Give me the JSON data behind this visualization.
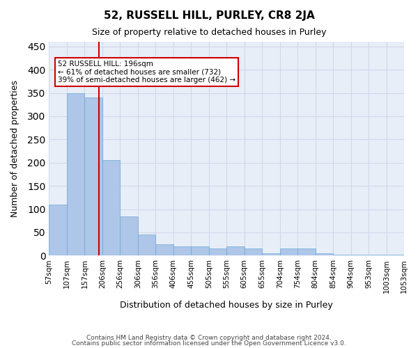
{
  "title": "52, RUSSELL HILL, PURLEY, CR8 2JA",
  "subtitle": "Size of property relative to detached houses in Purley",
  "xlabel": "Distribution of detached houses by size in Purley",
  "ylabel": "Number of detached properties",
  "footer_line1": "Contains HM Land Registry data © Crown copyright and database right 2024.",
  "footer_line2": "Contains public sector information licensed under the Open Government Licence v3.0.",
  "bar_labels": [
    "57sqm",
    "107sqm",
    "157sqm",
    "206sqm",
    "256sqm",
    "306sqm",
    "356sqm",
    "406sqm",
    "455sqm",
    "505sqm",
    "555sqm",
    "605sqm",
    "655sqm",
    "704sqm",
    "754sqm",
    "804sqm",
    "854sqm",
    "904sqm",
    "953sqm",
    "1003sqm",
    "1053sqm"
  ],
  "bar_values": [
    110,
    350,
    340,
    205,
    85,
    45,
    25,
    20,
    20,
    15,
    20,
    15,
    5,
    15,
    15,
    5,
    2,
    2,
    2,
    2
  ],
  "bar_color": "#aec6e8",
  "bar_edge_color": "#6aaad4",
  "grid_color": "#d0d8e8",
  "background_color": "#e8eef8",
  "red_line_x": 4,
  "annotation_text": "52 RUSSELL HILL: 196sqm\n← 61% of detached houses are smaller (732)\n39% of semi-detached houses are larger (462) →",
  "annotation_box_color": "#ffffff",
  "annotation_box_edge": "#cc0000",
  "ylim": [
    0,
    460
  ],
  "yticks": [
    0,
    50,
    100,
    150,
    200,
    250,
    300,
    350,
    400,
    450
  ]
}
